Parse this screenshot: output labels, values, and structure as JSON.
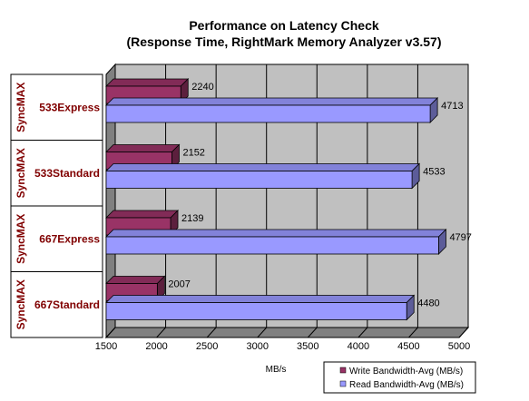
{
  "chart_data": {
    "type": "bar",
    "orientation": "horizontal",
    "title_line1": "Performance on Latency Check",
    "title_line2": "(Response Time, RightMark Memory Analyzer v3.57)",
    "xlabel": "MB/s",
    "xlim": [
      1500,
      5000
    ],
    "xticks": [
      1500,
      2000,
      2500,
      3000,
      3500,
      4000,
      4500,
      5000
    ],
    "group_label": "SyncMAX",
    "categories": [
      "533Express",
      "533Standard",
      "667Express",
      "667Standard"
    ],
    "series": [
      {
        "name": "Write Bandwidth-Avg (MB/s)",
        "color": "#993366",
        "values": [
          2240,
          2152,
          2139,
          2007
        ]
      },
      {
        "name": "Read Bandwidth-Avg (MB/s)",
        "color": "#9999ff",
        "values": [
          4713,
          4533,
          4797,
          4480
        ]
      }
    ],
    "grid": true,
    "legend_position": "bottom-right"
  }
}
